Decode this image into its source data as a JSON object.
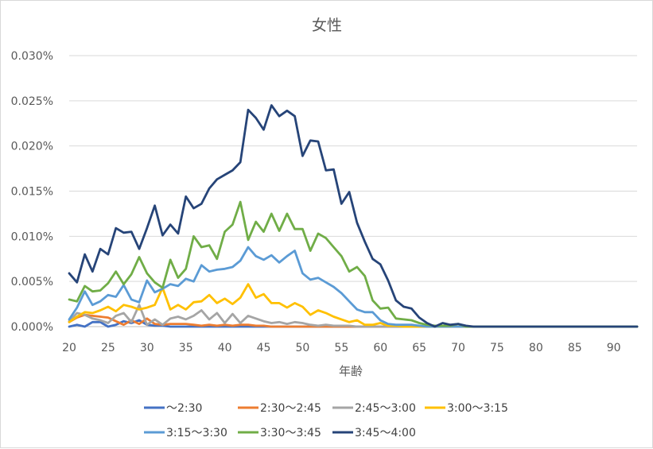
{
  "chart_data": {
    "type": "line",
    "title": "女性",
    "xlabel": "年齢",
    "ylabel": "",
    "xlim": [
      20,
      93
    ],
    "ylim": [
      0,
      0.0003
    ],
    "x_ticks": [
      20,
      25,
      30,
      35,
      40,
      45,
      50,
      55,
      60,
      65,
      70,
      75,
      80,
      85,
      90
    ],
    "y_ticks": [
      "0.000%",
      "0.005%",
      "0.010%",
      "0.015%",
      "0.020%",
      "0.025%",
      "0.030%"
    ],
    "y_tick_values": [
      0,
      5e-05,
      0.0001,
      0.00015,
      0.0002,
      0.00025,
      0.0003
    ],
    "grid": "horizontal",
    "legend_position": "bottom",
    "x": [
      20,
      21,
      22,
      23,
      24,
      25,
      26,
      27,
      28,
      29,
      30,
      31,
      32,
      33,
      34,
      35,
      36,
      37,
      38,
      39,
      40,
      41,
      42,
      43,
      44,
      45,
      46,
      47,
      48,
      49,
      50,
      51,
      52,
      53,
      54,
      55,
      56,
      57,
      58,
      59,
      60,
      61,
      62,
      63,
      64,
      65,
      66,
      67,
      68,
      69,
      70,
      71,
      72,
      73,
      74,
      75,
      76,
      77,
      78,
      79,
      80,
      81,
      82,
      83,
      84,
      85,
      86,
      87,
      88,
      89,
      90,
      91,
      92,
      93
    ],
    "series": [
      {
        "name": "～2:30",
        "color": "#4472c4",
        "values": [
          0,
          2e-06,
          0,
          5e-06,
          5e-06,
          0,
          2e-06,
          6e-06,
          4e-06,
          7e-06,
          2e-06,
          1e-06,
          1e-06,
          0,
          0,
          0,
          0,
          0,
          0,
          0,
          0,
          0,
          0,
          0,
          0,
          0,
          0,
          0,
          0,
          0,
          0,
          0,
          0,
          0,
          0,
          0,
          0,
          0,
          0,
          0,
          0,
          0,
          0,
          0,
          0,
          0,
          0,
          0,
          0,
          0,
          0,
          0,
          0,
          0,
          0,
          0,
          0,
          0,
          0,
          0,
          0,
          0,
          0,
          0,
          0,
          0,
          0,
          0,
          0,
          0,
          0,
          0,
          0,
          0
        ]
      },
      {
        "name": "2:30～2:45",
        "color": "#ed7d31",
        "values": [
          5e-06,
          1e-05,
          1.3e-05,
          1.2e-05,
          1.1e-05,
          1e-05,
          6e-06,
          2e-06,
          7e-06,
          3e-06,
          9e-06,
          3e-06,
          2e-06,
          3e-06,
          3e-06,
          3e-06,
          2e-06,
          1e-06,
          2e-06,
          1e-06,
          2e-06,
          1e-06,
          2e-06,
          2e-06,
          1e-06,
          1e-06,
          0,
          0,
          0,
          0,
          0,
          0,
          0,
          0,
          0,
          0,
          0,
          0,
          0,
          0,
          0,
          0,
          0,
          0,
          0,
          0,
          0,
          0,
          0,
          0,
          0,
          0,
          0,
          0,
          0,
          0,
          0,
          0,
          0,
          0,
          0,
          0,
          0,
          0,
          0,
          0,
          0,
          0,
          0,
          0,
          0,
          0,
          0,
          0
        ]
      },
      {
        "name": "2:45～3:00",
        "color": "#a5a5a5",
        "values": [
          6e-06,
          1.5e-05,
          1.3e-05,
          9e-06,
          7e-06,
          4e-06,
          1.2e-05,
          1.5e-05,
          5e-06,
          2.4e-05,
          2e-06,
          8e-06,
          2e-06,
          9e-06,
          1.1e-05,
          8e-06,
          1.2e-05,
          1.8e-05,
          8e-06,
          1.5e-05,
          4e-06,
          1.4e-05,
          4e-06,
          1.2e-05,
          9e-06,
          6e-06,
          4e-06,
          5e-06,
          3e-06,
          5e-06,
          4e-06,
          2e-06,
          1e-06,
          2e-06,
          1e-06,
          1e-06,
          1e-06,
          0,
          0,
          0,
          0,
          0,
          0,
          0,
          0,
          0,
          0,
          0,
          0,
          0,
          0,
          0,
          0,
          0,
          0,
          0,
          0,
          0,
          0,
          0,
          0,
          0,
          0,
          0,
          0,
          0,
          0,
          0,
          0,
          0,
          0,
          0,
          0,
          0
        ]
      },
      {
        "name": "3:00～3:15",
        "color": "#ffc000",
        "values": [
          5e-06,
          1.1e-05,
          1.6e-05,
          1.5e-05,
          1.8e-05,
          2.2e-05,
          1.7e-05,
          2.4e-05,
          2.2e-05,
          1.9e-05,
          2.1e-05,
          2.4e-05,
          4.3e-05,
          1.9e-05,
          2.4e-05,
          1.9e-05,
          2.7e-05,
          2.8e-05,
          3.5e-05,
          2.6e-05,
          3.1e-05,
          2.5e-05,
          3.2e-05,
          4.7e-05,
          3.2e-05,
          3.6e-05,
          2.6e-05,
          2.6e-05,
          2.1e-05,
          2.6e-05,
          2.2e-05,
          1.3e-05,
          1.8e-05,
          1.5e-05,
          1.1e-05,
          8e-06,
          5e-06,
          7e-06,
          2e-06,
          2e-06,
          4e-06,
          1e-06,
          1e-06,
          0,
          0,
          0,
          0,
          0,
          0,
          0,
          0,
          0,
          0,
          0,
          0,
          0,
          0,
          0,
          0,
          0,
          0,
          0,
          0,
          0,
          0,
          0,
          0,
          0,
          0,
          0,
          0,
          0,
          0,
          0
        ]
      },
      {
        "name": "3:15～3:30",
        "color": "#5b9bd5",
        "values": [
          8e-06,
          2.1e-05,
          3.9e-05,
          2.4e-05,
          2.8e-05,
          3.5e-05,
          3.3e-05,
          4.6e-05,
          3e-05,
          2.7e-05,
          5.1e-05,
          3.8e-05,
          4.2e-05,
          4.7e-05,
          4.5e-05,
          5.3e-05,
          5e-05,
          6.8e-05,
          6.1e-05,
          6.3e-05,
          6.4e-05,
          6.6e-05,
          7.3e-05,
          8.8e-05,
          7.8e-05,
          7.4e-05,
          7.9e-05,
          7.1e-05,
          7.8e-05,
          8.4e-05,
          5.9e-05,
          5.2e-05,
          5.4e-05,
          4.9e-05,
          4.4e-05,
          3.7e-05,
          2.8e-05,
          1.9e-05,
          1.6e-05,
          1.6e-05,
          7e-06,
          3e-06,
          2e-06,
          2e-06,
          2e-06,
          1e-06,
          0,
          0,
          0,
          0,
          0,
          0,
          0,
          0,
          0,
          0,
          0,
          0,
          0,
          0,
          0,
          0,
          0,
          0,
          0,
          0,
          0,
          0,
          0,
          0,
          0,
          0,
          0,
          0
        ]
      },
      {
        "name": "3:30～3:45",
        "color": "#70ad47",
        "values": [
          3e-05,
          2.8e-05,
          4.5e-05,
          3.9e-05,
          4e-05,
          4.8e-05,
          6.1e-05,
          4.7e-05,
          5.8e-05,
          7.7e-05,
          5.9e-05,
          4.9e-05,
          4.3e-05,
          7.4e-05,
          5.4e-05,
          6.4e-05,
          0.0001,
          8.8e-05,
          9e-05,
          7.5e-05,
          0.000105,
          0.000113,
          0.000138,
          9.6e-05,
          0.000116,
          0.000105,
          0.000125,
          0.000106,
          0.000125,
          0.000108,
          0.000108,
          8.4e-05,
          0.000103,
          9.8e-05,
          8.8e-05,
          7.8e-05,
          6.1e-05,
          6.6e-05,
          5.6e-05,
          2.9e-05,
          2e-05,
          2.1e-05,
          9e-06,
          8e-06,
          7e-06,
          4e-06,
          2e-06,
          1e-06,
          1e-06,
          1e-06,
          3e-06,
          0,
          0,
          0,
          0,
          0,
          0,
          0,
          0,
          0,
          0,
          0,
          0,
          0,
          0,
          0,
          0,
          0,
          0,
          0,
          0,
          0,
          0,
          0
        ]
      },
      {
        "name": "3:45～4:00",
        "color": "#264478",
        "values": [
          5.9e-05,
          4.9e-05,
          8e-05,
          6.1e-05,
          8.6e-05,
          8e-05,
          0.000109,
          0.000104,
          0.000105,
          8.6e-05,
          0.000109,
          0.000134,
          0.000101,
          0.000113,
          0.000103,
          0.000144,
          0.000131,
          0.000136,
          0.000153,
          0.000163,
          0.000168,
          0.000173,
          0.000182,
          0.00024,
          0.000231,
          0.000218,
          0.000245,
          0.000233,
          0.000239,
          0.000233,
          0.000189,
          0.000206,
          0.000205,
          0.000173,
          0.000174,
          0.000136,
          0.000149,
          0.000115,
          9.4e-05,
          7.5e-05,
          6.9e-05,
          5.1e-05,
          2.9e-05,
          2.2e-05,
          2e-05,
          1e-05,
          4e-06,
          0,
          4e-06,
          2e-06,
          3e-06,
          1e-06,
          0,
          0,
          0,
          0,
          0,
          0,
          0,
          0,
          0,
          0,
          0,
          0,
          0,
          0,
          0,
          0,
          0,
          0,
          0,
          0,
          0,
          0
        ]
      }
    ]
  }
}
